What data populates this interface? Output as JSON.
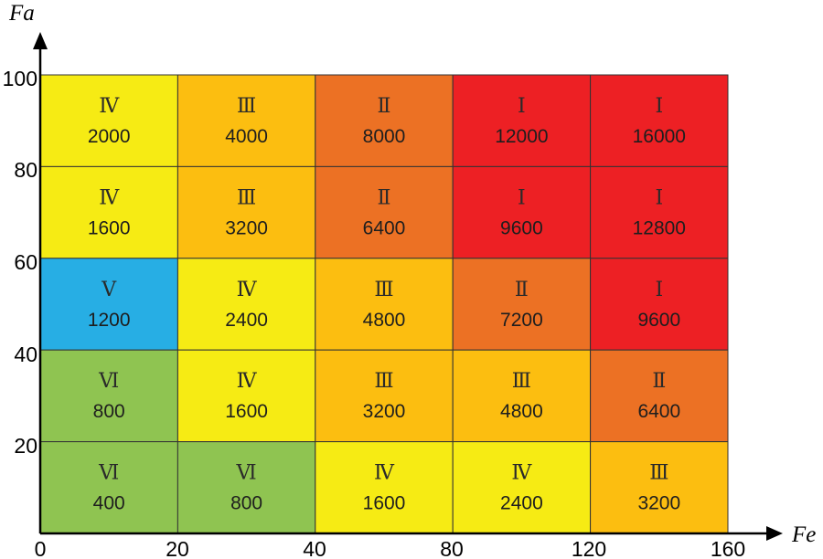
{
  "chart_data": {
    "type": "heatmap",
    "title": "",
    "xlabel": "Fe",
    "ylabel": "Fa",
    "x_ticks": [
      "0",
      "20",
      "40",
      "80",
      "120",
      "160"
    ],
    "y_ticks": [
      "20",
      "40",
      "60",
      "80",
      "100"
    ],
    "x_bins": [
      "0-20",
      "20-40",
      "40-80",
      "80-120",
      "120-160"
    ],
    "y_bins": [
      "80-100",
      "60-80",
      "40-60",
      "20-40",
      "0-20"
    ],
    "colors": {
      "I": "#ed2024",
      "II": "#ec7124",
      "III": "#fcbe10",
      "IV": "#f6eb14",
      "V": "#27aee4",
      "VI": "#8fc451"
    },
    "rows": [
      [
        {
          "grade": "Ⅳ",
          "level": "IV",
          "value": "2000"
        },
        {
          "grade": "Ⅲ",
          "level": "III",
          "value": "4000"
        },
        {
          "grade": "Ⅱ",
          "level": "II",
          "value": "8000"
        },
        {
          "grade": "Ⅰ",
          "level": "I",
          "value": "12000"
        },
        {
          "grade": "Ⅰ",
          "level": "I",
          "value": "16000"
        }
      ],
      [
        {
          "grade": "Ⅳ",
          "level": "IV",
          "value": "1600"
        },
        {
          "grade": "Ⅲ",
          "level": "III",
          "value": "3200"
        },
        {
          "grade": "Ⅱ",
          "level": "II",
          "value": "6400"
        },
        {
          "grade": "Ⅰ",
          "level": "I",
          "value": "9600"
        },
        {
          "grade": "Ⅰ",
          "level": "I",
          "value": "12800"
        }
      ],
      [
        {
          "grade": "Ⅴ",
          "level": "V",
          "value": "1200"
        },
        {
          "grade": "Ⅳ",
          "level": "IV",
          "value": "2400"
        },
        {
          "grade": "Ⅲ",
          "level": "III",
          "value": "4800"
        },
        {
          "grade": "Ⅱ",
          "level": "II",
          "value": "7200"
        },
        {
          "grade": "Ⅰ",
          "level": "I",
          "value": "9600"
        }
      ],
      [
        {
          "grade": "Ⅵ",
          "level": "VI",
          "value": "800"
        },
        {
          "grade": "Ⅳ",
          "level": "IV",
          "value": "1600"
        },
        {
          "grade": "Ⅲ",
          "level": "III",
          "value": "3200"
        },
        {
          "grade": "Ⅲ",
          "level": "III",
          "value": "4800"
        },
        {
          "grade": "Ⅱ",
          "level": "II",
          "value": "6400"
        }
      ],
      [
        {
          "grade": "Ⅵ",
          "level": "VI",
          "value": "400"
        },
        {
          "grade": "Ⅵ",
          "level": "VI",
          "value": "800"
        },
        {
          "grade": "Ⅳ",
          "level": "IV",
          "value": "1600"
        },
        {
          "grade": "Ⅳ",
          "level": "IV",
          "value": "2400"
        },
        {
          "grade": "Ⅲ",
          "level": "III",
          "value": "3200"
        }
      ]
    ]
  }
}
